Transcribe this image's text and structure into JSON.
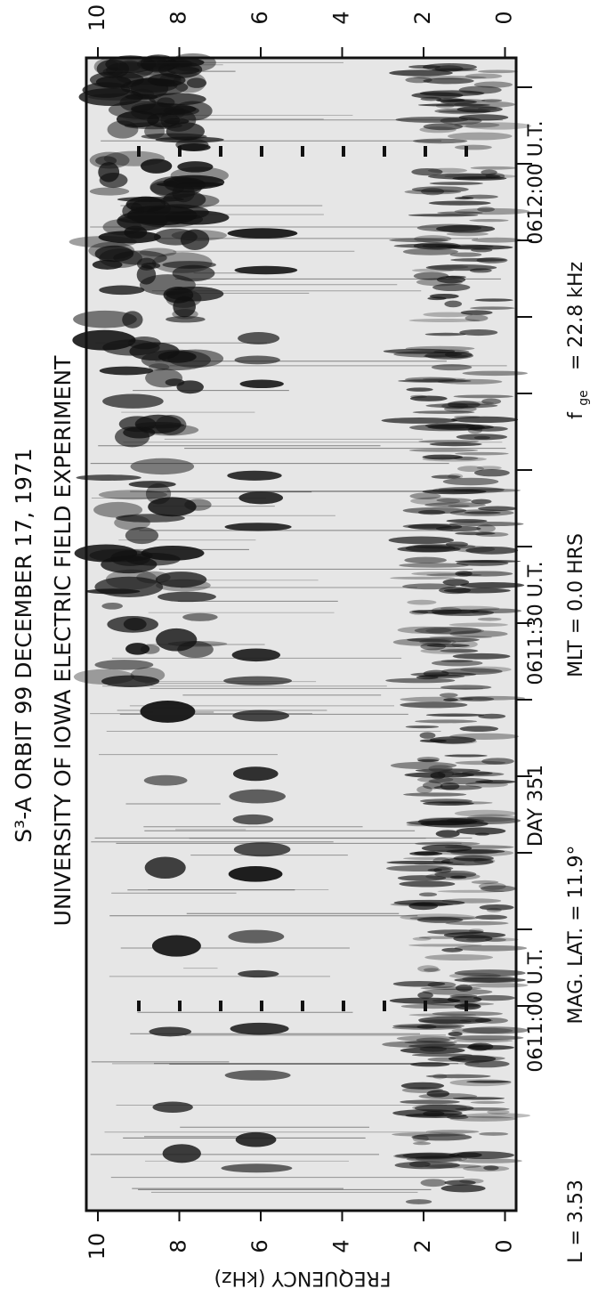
{
  "figure": {
    "title": "S³-A   ORBIT 99   DECEMBER 17, 1971",
    "subtitle": "UNIVERSITY OF IOWA  ELECTRIC FIELD EXPERIMENT",
    "frequency_axis": {
      "label": "FREQUENCY (kHz)",
      "bottom_ticks": [
        "10",
        "8",
        "6",
        "4",
        "2",
        "0"
      ],
      "top_ticks": [
        "10",
        "8",
        "6",
        "4",
        "2",
        "0"
      ]
    },
    "time_labels": [
      "0611:00 U.T.",
      "DAY 351",
      "0611:30 U.T.",
      "0612:00 U.T."
    ],
    "parameters": {
      "l_shell": "L = 3.53",
      "mag_lat": "MAG. LAT. = 11.9°",
      "mlt": "MLT = 0.0 HRS",
      "fge_symbol": "f",
      "fge_subscript": "ge",
      "fge_value": "=  22.8 kHz"
    }
  }
}
